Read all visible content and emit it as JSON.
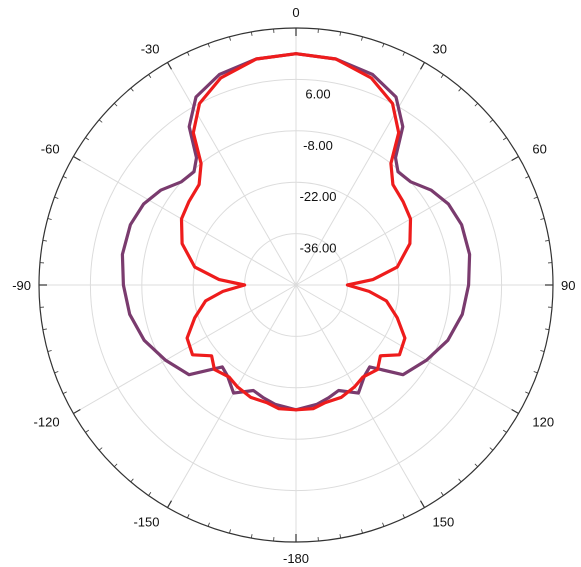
{
  "chart_data": {
    "type": "line",
    "subtype": "polar",
    "title": "",
    "angle_labels": [
      "0",
      "30",
      "60",
      "90",
      "120",
      "150",
      "-180",
      "-150",
      "-120",
      "-90",
      "-60",
      "-30"
    ],
    "angle_label_values": [
      0,
      30,
      60,
      90,
      120,
      150,
      180,
      210,
      240,
      270,
      300,
      330
    ],
    "radial_tick_labels": [
      "6.00",
      "-8.00",
      "-22.00",
      "-36.00"
    ],
    "radial_tick_values": [
      6,
      -8,
      -22,
      -36
    ],
    "radial_range": [
      -50,
      20
    ],
    "angular_grid_step_deg": 30,
    "grid": true,
    "series": [
      {
        "color": "#7a3b6e",
        "points": [
          [
            0,
            13
          ],
          [
            10,
            12.5
          ],
          [
            20,
            11
          ],
          [
            28,
            8
          ],
          [
            34,
            2
          ],
          [
            38,
            -6
          ],
          [
            42,
            -8.5
          ],
          [
            48,
            -8
          ],
          [
            55,
            -5
          ],
          [
            62,
            -3
          ],
          [
            70,
            -2
          ],
          [
            80,
            -2
          ],
          [
            90,
            -3
          ],
          [
            100,
            -4
          ],
          [
            110,
            -6
          ],
          [
            120,
            -9
          ],
          [
            130,
            -12
          ],
          [
            138,
            -20
          ],
          [
            143,
            -19
          ],
          [
            150,
            -16
          ],
          [
            158,
            -19
          ],
          [
            164,
            -18
          ],
          [
            170,
            -17
          ],
          [
            180,
            -16
          ],
          [
            190,
            -17
          ],
          [
            196,
            -18
          ],
          [
            202,
            -19
          ],
          [
            210,
            -16
          ],
          [
            217,
            -19
          ],
          [
            222,
            -20
          ],
          [
            230,
            -12
          ],
          [
            240,
            -9
          ],
          [
            250,
            -6
          ],
          [
            260,
            -4
          ],
          [
            270,
            -3
          ],
          [
            280,
            -2
          ],
          [
            290,
            -2
          ],
          [
            298,
            -3
          ],
          [
            305,
            -5
          ],
          [
            312,
            -8
          ],
          [
            318,
            -8.5
          ],
          [
            322,
            -6
          ],
          [
            326,
            2
          ],
          [
            332,
            8
          ],
          [
            340,
            11
          ],
          [
            350,
            12.5
          ],
          [
            360,
            13
          ]
        ]
      },
      {
        "color": "#ee1c1c",
        "points": [
          [
            0,
            13
          ],
          [
            10,
            12.5
          ],
          [
            20,
            10
          ],
          [
            28,
            6
          ],
          [
            34,
            0
          ],
          [
            38,
            -8
          ],
          [
            44,
            -12
          ],
          [
            52,
            -13
          ],
          [
            60,
            -14
          ],
          [
            70,
            -17
          ],
          [
            80,
            -22
          ],
          [
            86,
            -29
          ],
          [
            90,
            -36
          ],
          [
            95,
            -30
          ],
          [
            100,
            -25
          ],
          [
            108,
            -21
          ],
          [
            116,
            -17
          ],
          [
            124,
            -16
          ],
          [
            130,
            -20
          ],
          [
            136,
            -18
          ],
          [
            144,
            -19
          ],
          [
            150,
            -18
          ],
          [
            158,
            -17
          ],
          [
            166,
            -17
          ],
          [
            172,
            -16
          ],
          [
            180,
            -16
          ],
          [
            188,
            -16
          ],
          [
            194,
            -17
          ],
          [
            202,
            -17
          ],
          [
            210,
            -18
          ],
          [
            216,
            -19
          ],
          [
            224,
            -18
          ],
          [
            230,
            -20
          ],
          [
            236,
            -16
          ],
          [
            244,
            -17
          ],
          [
            252,
            -21
          ],
          [
            260,
            -25
          ],
          [
            265,
            -30
          ],
          [
            270,
            -36
          ],
          [
            274,
            -29
          ],
          [
            280,
            -22
          ],
          [
            290,
            -17
          ],
          [
            300,
            -14
          ],
          [
            308,
            -13
          ],
          [
            316,
            -12
          ],
          [
            322,
            -8
          ],
          [
            326,
            0
          ],
          [
            332,
            6
          ],
          [
            340,
            10
          ],
          [
            350,
            12.5
          ],
          [
            360,
            13
          ]
        ]
      }
    ]
  }
}
